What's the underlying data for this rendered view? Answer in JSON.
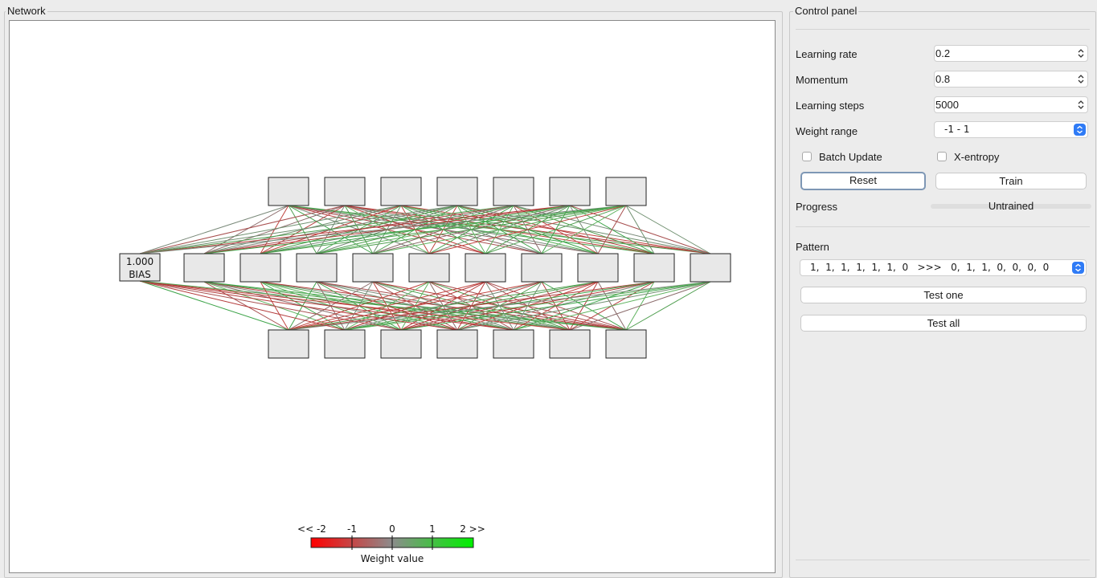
{
  "network_panel": {
    "title": "Network",
    "bias_node": {
      "value": "1.000",
      "label": "BIAS"
    },
    "layers": {
      "input_count": 7,
      "hidden_count": 10,
      "output_count": 7
    },
    "legend": {
      "tick_labels": [
        "<< -2",
        "-1",
        "0",
        "1",
        "2 >>"
      ],
      "caption": "Weight value",
      "colors": {
        "neg": "#ff0000",
        "mid": "#8c8c8c",
        "pos": "#00f000"
      }
    }
  },
  "control_panel": {
    "title": "Control panel",
    "learning_rate": {
      "label": "Learning rate",
      "value": "0.2"
    },
    "momentum": {
      "label": "Momentum",
      "value": "0.8"
    },
    "learning_steps": {
      "label": "Learning steps",
      "value": "5000"
    },
    "weight_range": {
      "label": "Weight range",
      "value": "-1 - 1"
    },
    "batch_update": {
      "label": "Batch Update",
      "checked": false
    },
    "x_entropy": {
      "label": "X-entropy",
      "checked": false
    },
    "reset_label": "Reset",
    "train_label": "Train",
    "progress": {
      "label": "Progress",
      "status": "Untrained"
    },
    "pattern": {
      "label": "Pattern",
      "value": "1,  1,  1,  1,  1,  1,  0   >>>   0,  1,  1,  0,  0,  0,  0"
    },
    "test_one_label": "Test one",
    "test_all_label": "Test all"
  }
}
